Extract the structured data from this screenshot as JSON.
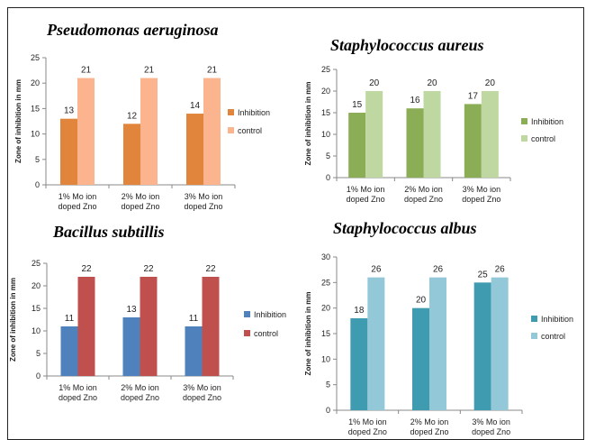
{
  "chart_data": [
    {
      "type": "bar",
      "title": "Pseudomonas aeruginosa",
      "ylabel": "Zone of inhibition in mm",
      "xlabel": "",
      "categories": [
        [
          "1% Mo ion",
          "doped Zno"
        ],
        [
          "2% Mo ion",
          "doped Zno"
        ],
        [
          "3% Mo ion",
          "doped Zno"
        ]
      ],
      "ylim": [
        0,
        25
      ],
      "yticks": [
        0,
        5,
        10,
        15,
        20,
        25
      ],
      "series": [
        {
          "name": "Inhibition",
          "values": [
            13,
            12,
            14
          ],
          "color": "#E0853B"
        },
        {
          "name": "control",
          "values": [
            21,
            21,
            21
          ],
          "color": "#FBB48E"
        }
      ],
      "legend": "right",
      "grid": false
    },
    {
      "type": "bar",
      "title": "Staphylococcus aureus",
      "ylabel": "Zone of inhibition in mm",
      "xlabel": "",
      "categories": [
        [
          "1% Mo ion",
          "doped Zno"
        ],
        [
          "2% Mo ion",
          "doped Zno"
        ],
        [
          "3% Mo ion",
          "doped Zno"
        ]
      ],
      "ylim": [
        0,
        25
      ],
      "yticks": [
        0,
        5,
        10,
        15,
        20,
        25
      ],
      "series": [
        {
          "name": "Inhibition",
          "values": [
            15,
            16,
            17
          ],
          "color": "#8BAD55"
        },
        {
          "name": "control",
          "values": [
            20,
            20,
            20
          ],
          "color": "#BFD7A0"
        }
      ],
      "legend": "right",
      "grid": false
    },
    {
      "type": "bar",
      "title": "Bacillus subtillis",
      "ylabel": "Zone of inhibition in mm",
      "xlabel": "",
      "categories": [
        [
          "1% Mo ion",
          "doped Zno"
        ],
        [
          "2% Mo ion",
          "doped Zno"
        ],
        [
          "3% Mo ion",
          "doped Zno"
        ]
      ],
      "ylim": [
        0,
        25
      ],
      "yticks": [
        0,
        5,
        10,
        15,
        20,
        25
      ],
      "series": [
        {
          "name": "Inhibition",
          "values": [
            11,
            13,
            11
          ],
          "color": "#4F81BD"
        },
        {
          "name": "control",
          "values": [
            22,
            22,
            22
          ],
          "color": "#C0504D"
        }
      ],
      "legend": "right",
      "grid": false
    },
    {
      "type": "bar",
      "title": "Staphylococcus albus",
      "ylabel": "Zone of inhibition in mm",
      "xlabel": "",
      "categories": [
        [
          "1% Mo ion",
          "doped Zno"
        ],
        [
          "2% Mo ion",
          "doped Zno"
        ],
        [
          "3% Mo ion",
          "doped Zno"
        ]
      ],
      "ylim": [
        0,
        30
      ],
      "yticks": [
        0,
        5,
        10,
        15,
        20,
        25,
        30
      ],
      "series": [
        {
          "name": "Inhibition",
          "values": [
            18,
            20,
            25
          ],
          "color": "#3F9CB0"
        },
        {
          "name": "control",
          "values": [
            26,
            26,
            26
          ],
          "color": "#93C8D8"
        }
      ],
      "legend": "right",
      "grid": false
    }
  ]
}
